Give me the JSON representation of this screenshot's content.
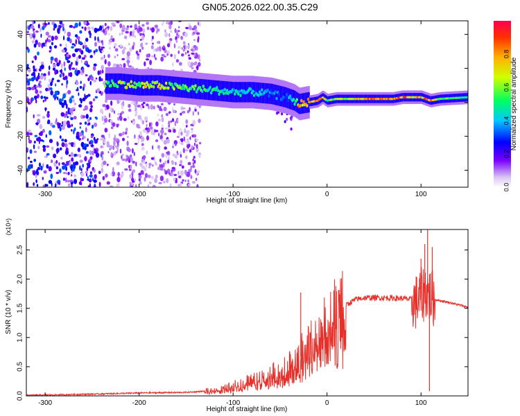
{
  "title": "GN05.2026.022.00.35.C29",
  "chart_data": [
    {
      "type": "heatmap",
      "title": "GN05.2026.022.00.35.C29",
      "xlabel": "Height of straight line (km)",
      "ylabel": "Frequency (Hz)",
      "xlim": [
        -320,
        150
      ],
      "ylim": [
        -50,
        48
      ],
      "xticks": [
        -300,
        -200,
        -100,
        0,
        100
      ],
      "yticks": [
        -40,
        -20,
        0,
        20,
        40
      ],
      "colorbar": {
        "label": "Normalized spectral amplitude",
        "range": [
          0,
          1
        ],
        "ticks": [
          "0.0",
          "0.2",
          "0.4",
          "0.6",
          "0.8"
        ]
      },
      "ridge": {
        "x": [
          -235,
          -220,
          -200,
          -180,
          -160,
          -140,
          -120,
          -100,
          -80,
          -60,
          -45,
          -35,
          -30,
          -20,
          -10,
          -5,
          0,
          10,
          30,
          50,
          70,
          80,
          90,
          100,
          105,
          110,
          120,
          150
        ],
        "freq": [
          11,
          11,
          10,
          10,
          9,
          8,
          7,
          6,
          6,
          5,
          3,
          1,
          -1,
          0,
          1,
          3,
          1,
          2,
          2,
          2,
          2,
          3,
          3,
          3,
          2,
          1,
          2,
          3
        ],
        "amplitude": [
          0.6,
          0.7,
          0.7,
          0.75,
          0.65,
          0.6,
          0.55,
          0.5,
          0.45,
          0.4,
          0.35,
          0.5,
          0.9,
          0.85,
          0.9,
          0.95,
          0.6,
          0.7,
          0.75,
          0.95,
          0.9,
          0.95,
          0.9,
          0.8,
          0.95,
          0.9,
          0.6,
          0.6
        ]
      },
      "noise_region_x": [
        -320,
        -150
      ]
    },
    {
      "type": "line",
      "xlabel": "Height of straight line (km)",
      "ylabel": "SNR (10 * v/v)",
      "y_multiplier": "(x10⁴)",
      "xlim": [
        -320,
        150
      ],
      "ylim": [
        0,
        2.85
      ],
      "xticks": [
        -300,
        -200,
        -100,
        0,
        100
      ],
      "yticks": [
        "0.0",
        "0.5",
        "1.0",
        "1.5",
        "2.0",
        "2.5"
      ],
      "series": [
        {
          "name": "SNR",
          "color": "#e8302a",
          "x": [
            -320,
            -250,
            -200,
            -150,
            -130,
            -110,
            -100,
            -80,
            -60,
            -40,
            -30,
            -20,
            -10,
            0,
            10,
            20,
            30,
            40,
            60,
            80,
            90,
            95,
            100,
            105,
            110,
            115,
            130,
            150
          ],
          "y": [
            0.01,
            0.03,
            0.05,
            0.06,
            0.08,
            0.12,
            0.18,
            0.25,
            0.35,
            0.5,
            0.65,
            0.8,
            0.95,
            1.15,
            1.35,
            1.55,
            1.65,
            1.68,
            1.68,
            1.67,
            1.65,
            1.6,
            1.7,
            1.8,
            1.7,
            1.65,
            1.6,
            1.52
          ]
        }
      ],
      "spikes": [
        {
          "x": -28,
          "y": 1.77
        },
        {
          "x": 100,
          "y": 2.35
        },
        {
          "x": 104,
          "y": 2.6
        },
        {
          "x": 107,
          "y": 2.85
        },
        {
          "x": 109,
          "y": 0.08
        },
        {
          "x": 112,
          "y": 2.55
        }
      ]
    }
  ]
}
